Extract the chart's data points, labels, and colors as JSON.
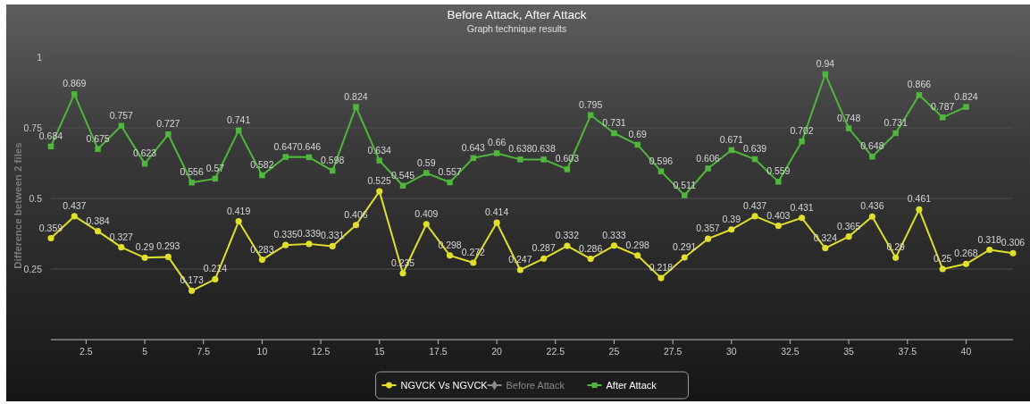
{
  "chart_data": {
    "type": "line",
    "title": "Before Attack, After Attack",
    "subtitle": "Graph technique results",
    "ylabel": "Difference between 2 files",
    "x": [
      1,
      2,
      3,
      4,
      5,
      6,
      7,
      8,
      9,
      10,
      11,
      12,
      13,
      14,
      15,
      16,
      17,
      18,
      19,
      20,
      21,
      22,
      23,
      24,
      25,
      26,
      27,
      28,
      29,
      30,
      31,
      32,
      33,
      34,
      35,
      36,
      37,
      38,
      39,
      40,
      41,
      42
    ],
    "series": [
      {
        "name": "NGVCK Vs NGVCK",
        "color": "#e0e02a",
        "marker": "circle",
        "values": [
          0.359,
          0.437,
          0.384,
          0.327,
          0.29,
          0.293,
          0.173,
          0.214,
          0.419,
          0.283,
          0.335,
          0.339,
          0.331,
          0.406,
          0.525,
          0.235,
          0.409,
          0.298,
          0.272,
          0.414,
          0.247,
          0.287,
          0.332,
          0.286,
          0.333,
          0.298,
          0.218,
          0.291,
          0.357,
          0.39,
          0.437,
          0.403,
          0.431,
          0.324,
          0.365,
          0.436,
          0.29,
          0.461,
          0.25,
          0.268,
          0.318,
          0.306
        ]
      },
      {
        "name": "Before Attack",
        "color": "#8a8a8a",
        "marker": "diamond",
        "values": [
          null,
          null,
          null,
          null,
          null,
          null,
          null,
          null,
          null,
          null,
          null,
          null,
          null,
          null,
          null,
          null,
          null,
          null,
          null,
          null,
          null,
          null,
          null,
          null,
          null,
          null,
          null,
          null,
          null,
          null,
          null,
          null,
          null,
          null,
          null,
          null,
          null,
          null,
          null,
          null,
          null,
          null
        ]
      },
      {
        "name": "After Attack",
        "color": "#4fb83c",
        "marker": "square",
        "values": [
          0.684,
          0.869,
          0.675,
          0.757,
          0.623,
          0.727,
          0.556,
          0.57,
          0.741,
          0.582,
          0.647,
          0.646,
          0.598,
          0.824,
          0.634,
          0.545,
          0.59,
          0.557,
          0.643,
          0.66,
          0.638,
          0.638,
          0.603,
          0.795,
          0.731,
          0.69,
          0.596,
          0.511,
          0.606,
          0.671,
          0.639,
          0.559,
          0.702,
          0.94,
          0.748,
          0.648,
          0.731,
          0.866,
          0.787,
          0.824,
          null,
          null
        ]
      }
    ],
    "xlim": [
      1,
      42
    ],
    "xticks": [
      2.5,
      5,
      7.5,
      10,
      12.5,
      15,
      17.5,
      20,
      22.5,
      25,
      27.5,
      30,
      32.5,
      35,
      37.5,
      40
    ],
    "ylim": [
      0,
      1
    ],
    "yticks": [
      0.25,
      0.5,
      0.75,
      1
    ],
    "grid": "y",
    "legend": "bottom",
    "data_labels": true
  }
}
